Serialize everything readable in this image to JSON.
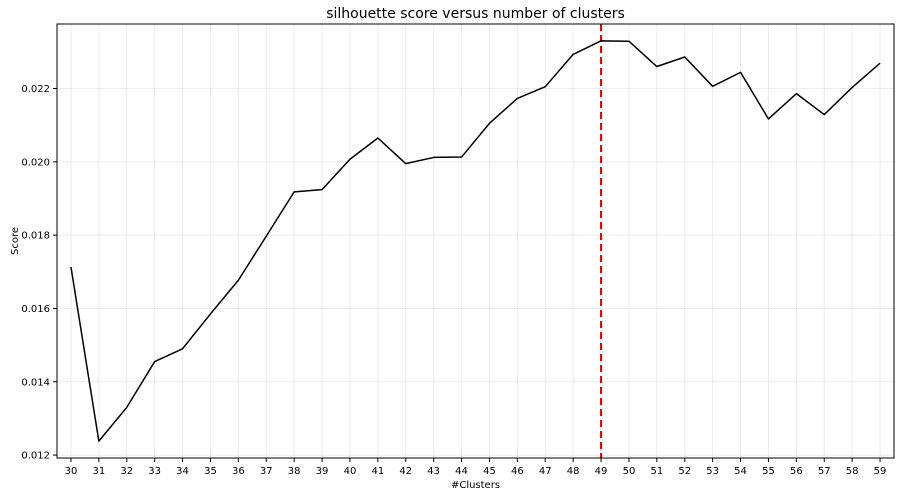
{
  "chart_data": {
    "type": "line",
    "title": "silhouette score versus number of clusters",
    "xlabel": "#Clusters",
    "ylabel": "Score",
    "x": [
      30,
      31,
      32,
      33,
      34,
      35,
      36,
      37,
      38,
      39,
      40,
      41,
      42,
      43,
      44,
      45,
      46,
      47,
      48,
      49,
      50,
      51,
      52,
      53,
      54,
      55,
      56,
      57,
      58,
      59
    ],
    "series": [
      {
        "values": [
          0.01713,
          0.01238,
          0.0133,
          0.01455,
          0.0149,
          0.01585,
          0.01677,
          0.01797,
          0.01918,
          0.01924,
          0.02007,
          0.02065,
          0.01995,
          0.02012,
          0.02013,
          0.02105,
          0.02173,
          0.02205,
          0.02293,
          0.0233,
          0.02329,
          0.0226,
          0.02286,
          0.02206,
          0.02244,
          0.02117,
          0.02186,
          0.02129,
          0.02203,
          0.02269
        ],
        "color": "#000000"
      }
    ],
    "xlim": [
      29.5,
      59.5
    ],
    "ylim": [
      0.01192,
      0.02376
    ],
    "yticks": [
      0.012,
      0.014,
      0.016,
      0.018,
      0.02,
      0.022
    ],
    "ytick_labels": [
      "0.012",
      "0.014",
      "0.016",
      "0.018",
      "0.020",
      "0.022"
    ],
    "grid": true,
    "vline": {
      "x": 49,
      "color": "#e00000",
      "style": "dashed"
    }
  }
}
